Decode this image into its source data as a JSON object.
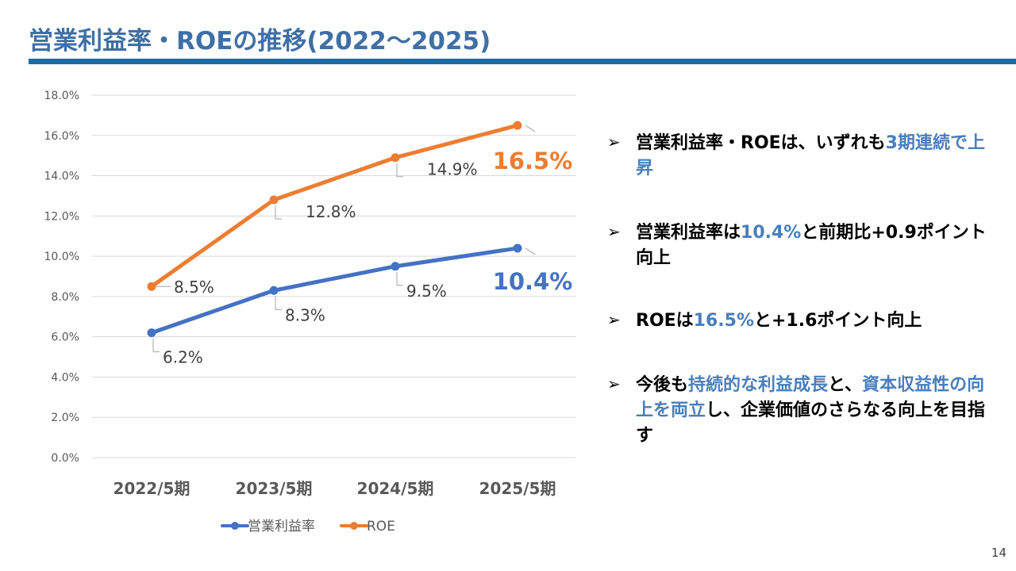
{
  "title": "営業利益率・ROEの推移(2022～2025)",
  "page_number": "14",
  "chart_data": {
    "type": "line",
    "categories": [
      "2022/5期",
      "2023/5期",
      "2024/5期",
      "2025/5期"
    ],
    "series": [
      {
        "name": "営業利益率",
        "values": [
          6.2,
          8.3,
          9.5,
          10.4
        ],
        "color": "#4472c4",
        "labels": [
          "6.2%",
          "8.3%",
          "9.5%",
          "10.4%"
        ]
      },
      {
        "name": "ROE",
        "values": [
          8.5,
          12.8,
          14.9,
          16.5
        ],
        "color": "#ed7d31",
        "labels": [
          "8.5%",
          "12.8%",
          "14.9%",
          "16.5%"
        ]
      }
    ],
    "ylim": [
      0,
      18
    ],
    "yticks": [
      "0.0%",
      "2.0%",
      "4.0%",
      "6.0%",
      "8.0%",
      "10.0%",
      "12.0%",
      "14.0%",
      "16.0%",
      "18.0%"
    ],
    "grid": true,
    "legend_position": "bottom"
  },
  "bullets": [
    {
      "segments": [
        {
          "text": "営業利益率・ROEは、いずれも",
          "hl": false
        },
        {
          "text": "3期連続で上昇",
          "hl": true
        }
      ]
    },
    {
      "segments": [
        {
          "text": "営業利益率は",
          "hl": false
        },
        {
          "text": "10.4%",
          "hl": true
        },
        {
          "text": "と前期比+0.9ポイント向上",
          "hl": false
        }
      ]
    },
    {
      "segments": [
        {
          "text": "ROEは",
          "hl": false
        },
        {
          "text": "16.5%",
          "hl": true
        },
        {
          "text": "と+1.6ポイント向上",
          "hl": false
        }
      ]
    },
    {
      "segments": [
        {
          "text": "今後も",
          "hl": false
        },
        {
          "text": "持続的な利益成長",
          "hl": true
        },
        {
          "text": "と、",
          "hl": false
        },
        {
          "text": "資本収益性の向上を両立",
          "hl": true
        },
        {
          "text": "し、企業価値のさらなる向上を目指す",
          "hl": false
        }
      ]
    }
  ],
  "bullet_marker": "➢",
  "colors": {
    "accent": "#4a7ebb",
    "title": "#3f6fa6",
    "title_bar": "#1c6aa6"
  }
}
